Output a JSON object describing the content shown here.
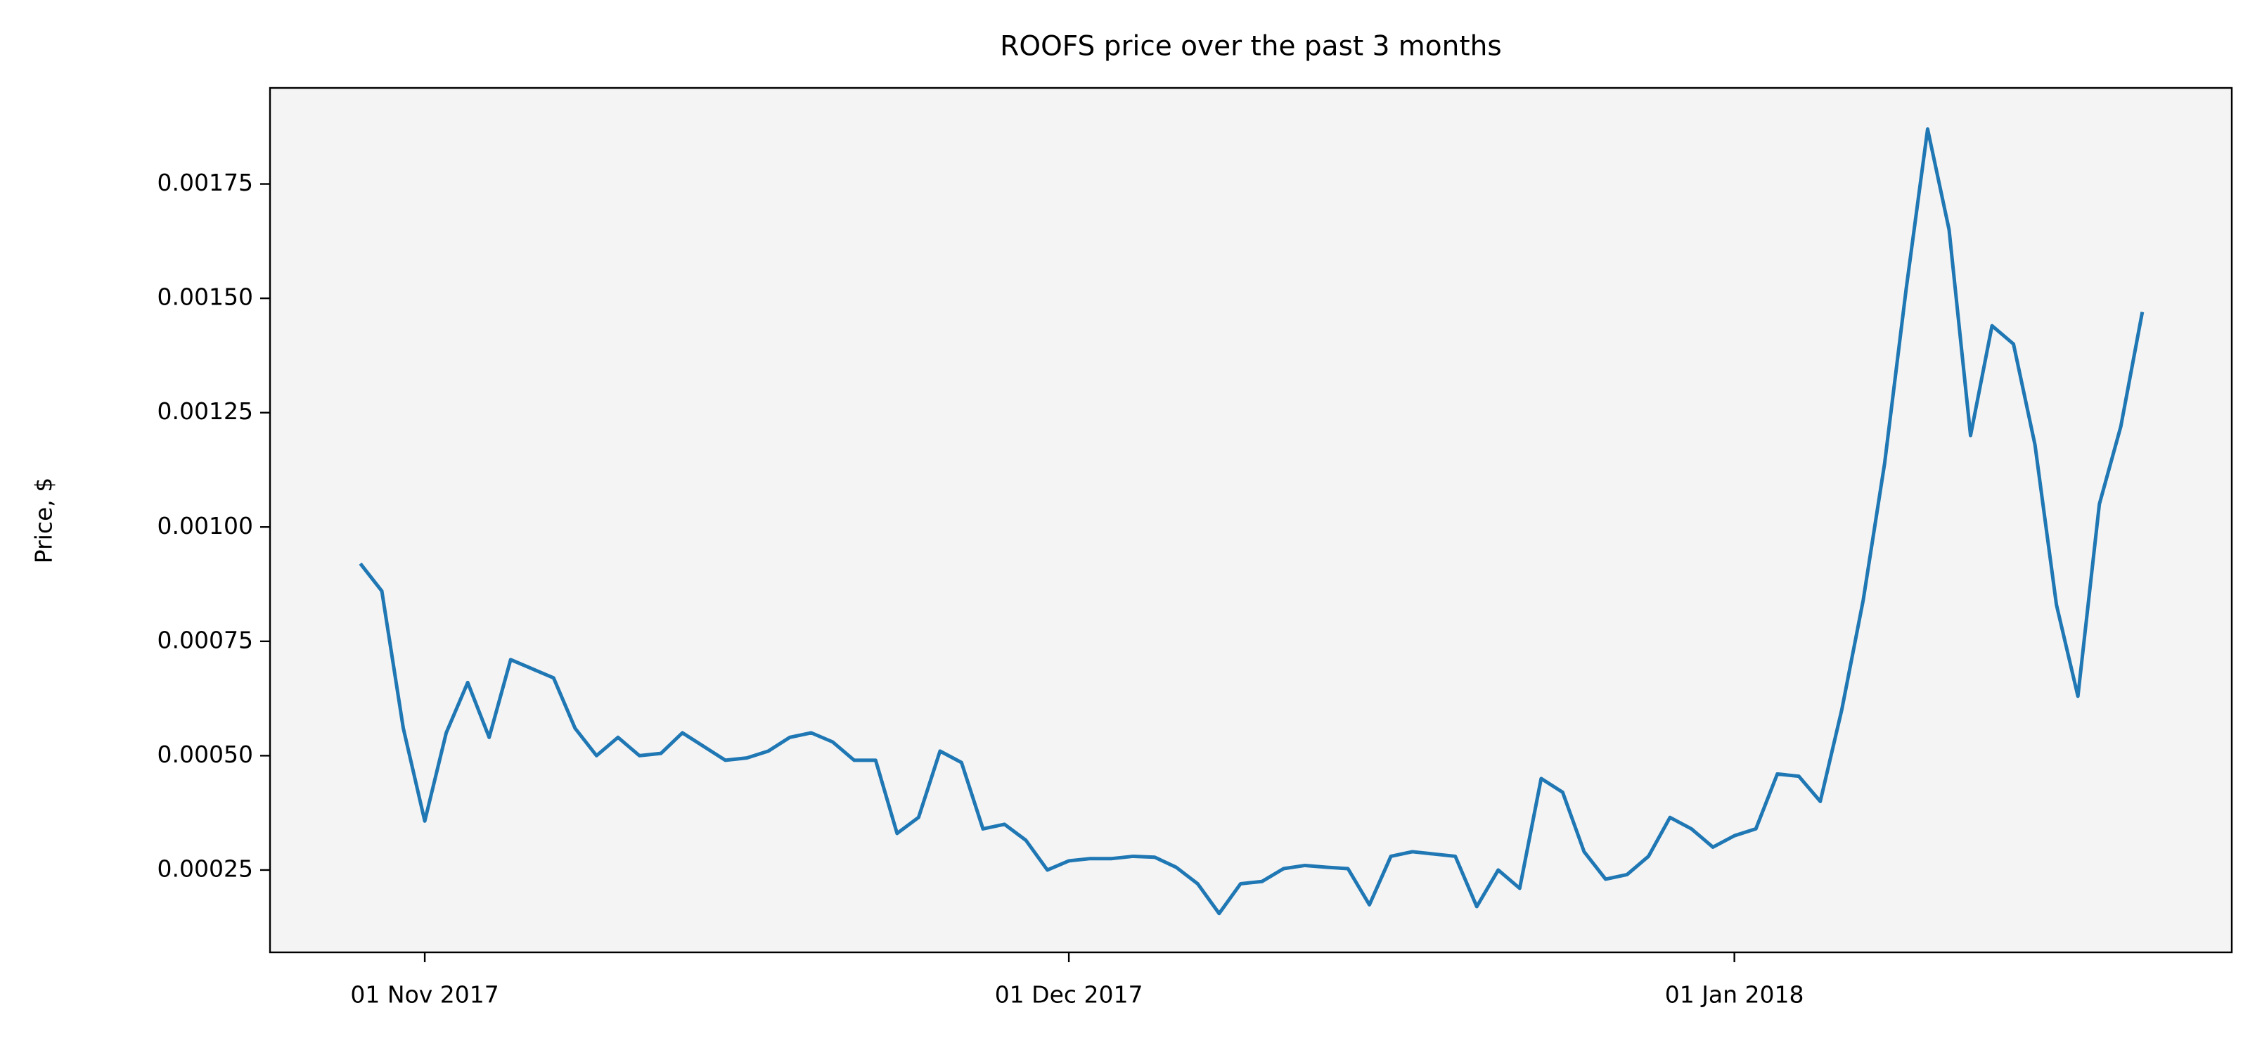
{
  "chart_data": {
    "type": "line",
    "title": "ROOFS price over the past 3 months",
    "ylabel": "Price, $",
    "x": [
      "2017-10-29",
      "2017-10-30",
      "2017-10-31",
      "2017-11-01",
      "2017-11-02",
      "2017-11-03",
      "2017-11-04",
      "2017-11-05",
      "2017-11-06",
      "2017-11-07",
      "2017-11-08",
      "2017-11-09",
      "2017-11-10",
      "2017-11-11",
      "2017-11-12",
      "2017-11-13",
      "2017-11-14",
      "2017-11-15",
      "2017-11-16",
      "2017-11-17",
      "2017-11-18",
      "2017-11-19",
      "2017-11-20",
      "2017-11-21",
      "2017-11-22",
      "2017-11-23",
      "2017-11-24",
      "2017-11-25",
      "2017-11-26",
      "2017-11-27",
      "2017-11-28",
      "2017-11-29",
      "2017-11-30",
      "2017-12-01",
      "2017-12-02",
      "2017-12-03",
      "2017-12-04",
      "2017-12-05",
      "2017-12-06",
      "2017-12-07",
      "2017-12-08",
      "2017-12-09",
      "2017-12-10",
      "2017-12-11",
      "2017-12-12",
      "2017-12-13",
      "2017-12-14",
      "2017-12-15",
      "2017-12-16",
      "2017-12-17",
      "2017-12-18",
      "2017-12-19",
      "2017-12-20",
      "2017-12-21",
      "2017-12-22",
      "2017-12-23",
      "2017-12-24",
      "2017-12-25",
      "2017-12-26",
      "2017-12-27",
      "2017-12-28",
      "2017-12-29",
      "2017-12-30",
      "2017-12-31",
      "2018-01-01",
      "2018-01-02",
      "2018-01-03",
      "2018-01-04",
      "2018-01-05",
      "2018-01-06",
      "2018-01-07",
      "2018-01-08",
      "2018-01-09",
      "2018-01-10",
      "2018-01-11",
      "2018-01-12",
      "2018-01-13",
      "2018-01-14",
      "2018-01-15",
      "2018-01-16",
      "2018-01-17",
      "2018-01-18",
      "2018-01-19",
      "2018-01-20"
    ],
    "series": [
      {
        "name": "ROOFS",
        "color": "#1f77b4",
        "values": [
          0.00092,
          0.00086,
          0.00056,
          0.000357,
          0.00055,
          0.00066,
          0.00054,
          0.00071,
          0.00069,
          0.00067,
          0.00056,
          0.0005,
          0.00054,
          0.0005,
          0.000505,
          0.00055,
          0.00052,
          0.00049,
          0.000495,
          0.00051,
          0.00054,
          0.00055,
          0.00053,
          0.00049,
          0.00049,
          0.00033,
          0.000365,
          0.00051,
          0.000485,
          0.00034,
          0.00035,
          0.000315,
          0.00025,
          0.00027,
          0.000275,
          0.000275,
          0.00028,
          0.000278,
          0.000256,
          0.00022,
          0.000155,
          0.00022,
          0.000225,
          0.000253,
          0.00026,
          0.000256,
          0.000253,
          0.000174,
          0.00028,
          0.00029,
          0.000285,
          0.00028,
          0.00017,
          0.00025,
          0.00021,
          0.00045,
          0.00042,
          0.00029,
          0.00023,
          0.00024,
          0.00028,
          0.000365,
          0.00034,
          0.0003,
          0.000325,
          0.00034,
          0.00046,
          0.000455,
          0.0004,
          0.0006,
          0.00084,
          0.00114,
          0.00152,
          0.00187,
          0.00165,
          0.0012,
          0.00144,
          0.0014,
          0.00118,
          0.00083,
          0.00063,
          0.00105,
          0.00122,
          0.00147
        ]
      }
    ],
    "xlim": [
      "2017-10-24T19:00:00Z",
      "2018-01-24T04:00:00Z"
    ],
    "xticks": [
      {
        "value": "2017-11-01",
        "label": "01 Nov 2017"
      },
      {
        "value": "2017-12-01",
        "label": "01 Dec 2017"
      },
      {
        "value": "2018-01-01",
        "label": "01 Jan 2018"
      }
    ],
    "ylim": [
      7e-05,
      0.00196
    ],
    "yticks": [
      0.00025,
      {
        "value": 0.0005,
        "label": "0.00050"
      },
      0.00075,
      {
        "value": 0.001,
        "label": "0.00100"
      },
      0.00125,
      {
        "value": 0.0015,
        "label": "0.00150"
      },
      0.00175
    ],
    "background": "#f4f4f4"
  }
}
